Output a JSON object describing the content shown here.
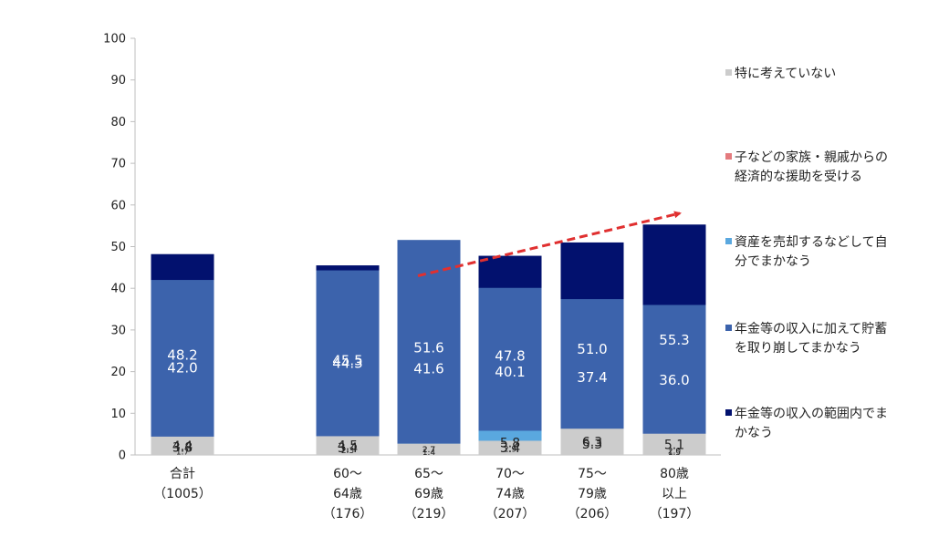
{
  "chart_data": {
    "type": "stacked-bar",
    "ylim": [
      0,
      100
    ],
    "yticks": [
      0,
      10,
      20,
      30,
      40,
      50,
      60,
      70,
      80,
      90,
      100
    ],
    "groups": [
      {
        "label_lines": [
          "合計",
          "（1005）"
        ],
        "gap_before": false
      },
      {
        "label_lines": [
          "60～",
          "64歳",
          "（176）"
        ],
        "gap_before": true
      },
      {
        "label_lines": [
          "65～",
          "69歳",
          "（219）"
        ],
        "gap_before": false
      },
      {
        "label_lines": [
          "70～",
          "74歳",
          "（207）"
        ],
        "gap_before": false
      },
      {
        "label_lines": [
          "75～",
          "79歳",
          "（206）"
        ],
        "gap_before": false
      },
      {
        "label_lines": [
          "80歳",
          "以上",
          "（197）"
        ],
        "gap_before": false
      }
    ],
    "series": [
      {
        "name": "年金等の収入の範囲内でまかなう",
        "legend_lines": [
          "年金等の収入の範囲内でま",
          "かなう"
        ],
        "color": "#02116e",
        "label_color": "#ffffff",
        "values": [
          48.2,
          45.5,
          41.6,
          47.8,
          51.0,
          55.3
        ],
        "labels": [
          "48.2",
          "45.5",
          "41.6",
          "47.8",
          "51.0",
          "55.3"
        ]
      },
      {
        "name": "年金等の収入に加えて貯蓄を取り崩してまかなう",
        "legend_lines": [
          "年金等の収入に加えて貯蓄",
          "を取り崩してまかなう"
        ],
        "color": "#3c63ac",
        "label_color": "#ffffff",
        "values": [
          42.0,
          44.3,
          51.6,
          40.1,
          37.4,
          36.0
        ],
        "labels": [
          "42.0",
          "44.3",
          "51.6",
          "40.1",
          "37.4",
          "36.0"
        ]
      },
      {
        "name": "資産を売却するなどして自分でまかなう",
        "legend_lines": [
          "資産を売却するなどして自",
          "分でまかなう"
        ],
        "color": "#5aa8df",
        "label_color": "#222222",
        "values": [
          3.8,
          3.4,
          2.7,
          5.8,
          5.3,
          1.5
        ],
        "labels": [
          "3.8",
          "3.4",
          "2.7",
          "5.8",
          "5.3",
          "1.5"
        ]
      },
      {
        "name": "子などの家族・親戚からの経済的な援助を受ける",
        "legend_lines": [
          "子などの家族・親戚からの",
          "経済的な援助を受ける"
        ],
        "color": "#e47b7e",
        "label_color": "#222222",
        "values": [
          1.7,
          2.3,
          1.4,
          2.9,
          0.0,
          2.0
        ],
        "labels": [
          "1.7",
          "2.3",
          "1.4",
          "2.9",
          "",
          "2.0"
        ]
      },
      {
        "name": "特に考えていない",
        "legend_lines": [
          "特に考えていない"
        ],
        "color": "#cccccc",
        "label_color": "#222222",
        "values": [
          4.4,
          4.5,
          2.7,
          3.4,
          6.3,
          5.1
        ],
        "labels": [
          "4.4",
          "4.5",
          "2.7",
          "3.4",
          "6.3",
          "5.1"
        ]
      }
    ],
    "legend_order": [
      4,
      3,
      2,
      1,
      0
    ],
    "trend_arrow": {
      "color": "#e03030",
      "from": {
        "group": 2,
        "y": 43
      },
      "to": {
        "group": 5,
        "y": 58
      }
    }
  }
}
